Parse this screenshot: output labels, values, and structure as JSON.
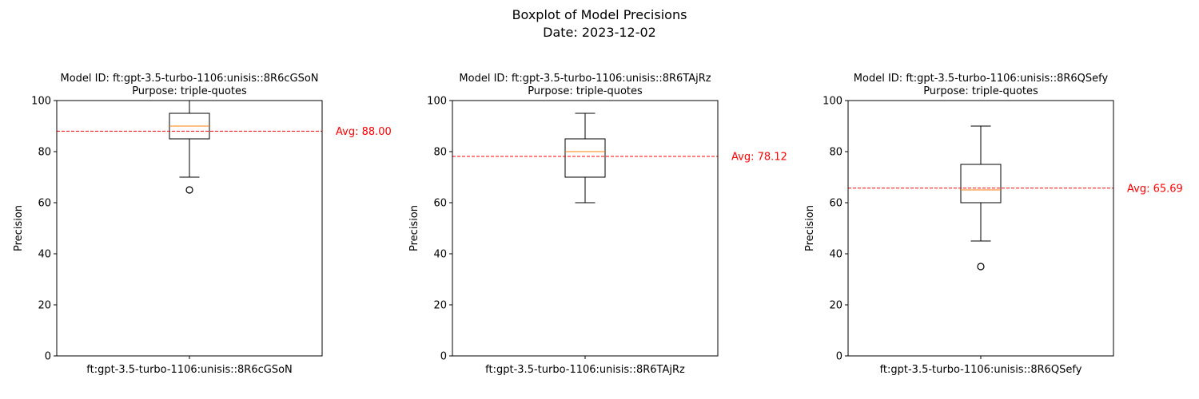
{
  "figure": {
    "title_line1": "Boxplot of Model Precisions",
    "title_line2": "Date: 2023-12-02"
  },
  "chart_data": [
    {
      "type": "box",
      "title_line1": "Model ID: ft:gpt-3.5-turbo-1106:unisis::8R6cGSoN",
      "title_line2": "Purpose: triple-quotes",
      "ylabel": "Precision",
      "ylim": [
        0,
        100
      ],
      "yticks": [
        0,
        20,
        40,
        60,
        80,
        100
      ],
      "category": "ft:gpt-3.5-turbo-1106:unisis::8R6cGSoN",
      "whisker_low": 70,
      "q1": 85,
      "median": 90,
      "q3": 95,
      "whisker_high": 100,
      "outliers": [
        65
      ],
      "average": 88.0,
      "average_label": "Avg: 88.00"
    },
    {
      "type": "box",
      "title_line1": "Model ID: ft:gpt-3.5-turbo-1106:unisis::8R6TAjRz",
      "title_line2": "Purpose: triple-quotes",
      "ylabel": "Precision",
      "ylim": [
        0,
        100
      ],
      "yticks": [
        0,
        20,
        40,
        60,
        80,
        100
      ],
      "category": "ft:gpt-3.5-turbo-1106:unisis::8R6TAjRz",
      "whisker_low": 60,
      "q1": 70,
      "median": 80,
      "q3": 85,
      "whisker_high": 95,
      "outliers": [],
      "average": 78.12,
      "average_label": "Avg: 78.12"
    },
    {
      "type": "box",
      "title_line1": "Model ID: ft:gpt-3.5-turbo-1106:unisis::8R6QSefy",
      "title_line2": "Purpose: triple-quotes",
      "ylabel": "Precision",
      "ylim": [
        0,
        100
      ],
      "yticks": [
        0,
        20,
        40,
        60,
        80,
        100
      ],
      "category": "ft:gpt-3.5-turbo-1106:unisis::8R6QSefy",
      "whisker_low": 45,
      "q1": 60,
      "median": 65,
      "q3": 75,
      "whisker_high": 90,
      "outliers": [
        35
      ],
      "average": 65.69,
      "average_label": "Avg: 65.69"
    }
  ],
  "colors": {
    "box": "#000000",
    "median": "#ff7f0e",
    "average_line": "#ff0000",
    "average_text": "#ff0000"
  }
}
